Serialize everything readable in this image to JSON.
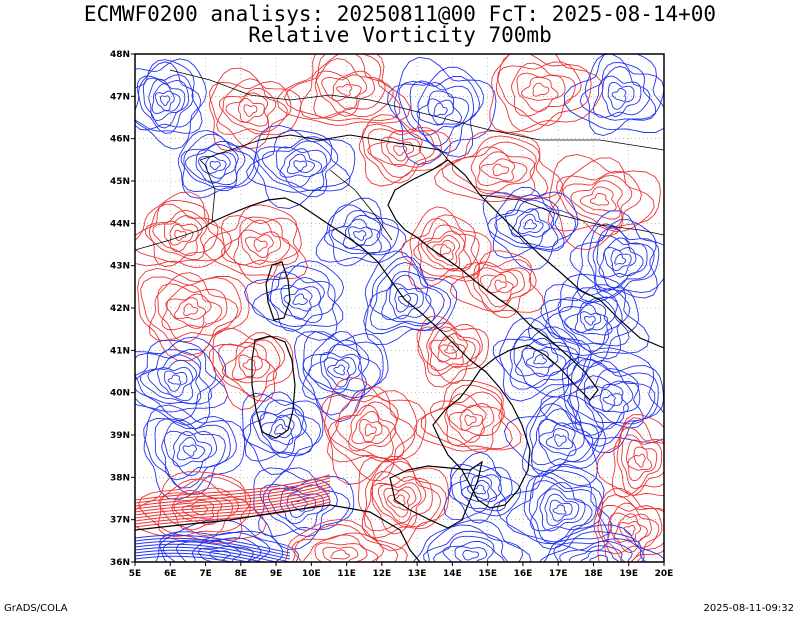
{
  "title": {
    "line1": "ECMWF0200 analisys: 20250811@00 FcT: 2025-08-14+00",
    "line2": "Relative Vorticity 700mb"
  },
  "footer": {
    "left": "GrADS/COLA",
    "right": "2025-08-11-09:32"
  },
  "map": {
    "lon_labels": [
      "5E",
      "6E",
      "7E",
      "8E",
      "9E",
      "10E",
      "11E",
      "12E",
      "13E",
      "14E",
      "15E",
      "16E",
      "17E",
      "18E",
      "19E",
      "20E"
    ],
    "lat_labels": [
      "48N",
      "47N",
      "46N",
      "45N",
      "44N",
      "43N",
      "42N",
      "41N",
      "40N",
      "39N",
      "38N",
      "37N",
      "36N"
    ],
    "lon_range": [
      5,
      20
    ],
    "lat_range": [
      36,
      48
    ],
    "colors": {
      "positive_contour": "#ee3333",
      "negative_contour": "#2233ee",
      "coastline": "#000000",
      "grid": "#999999"
    }
  }
}
